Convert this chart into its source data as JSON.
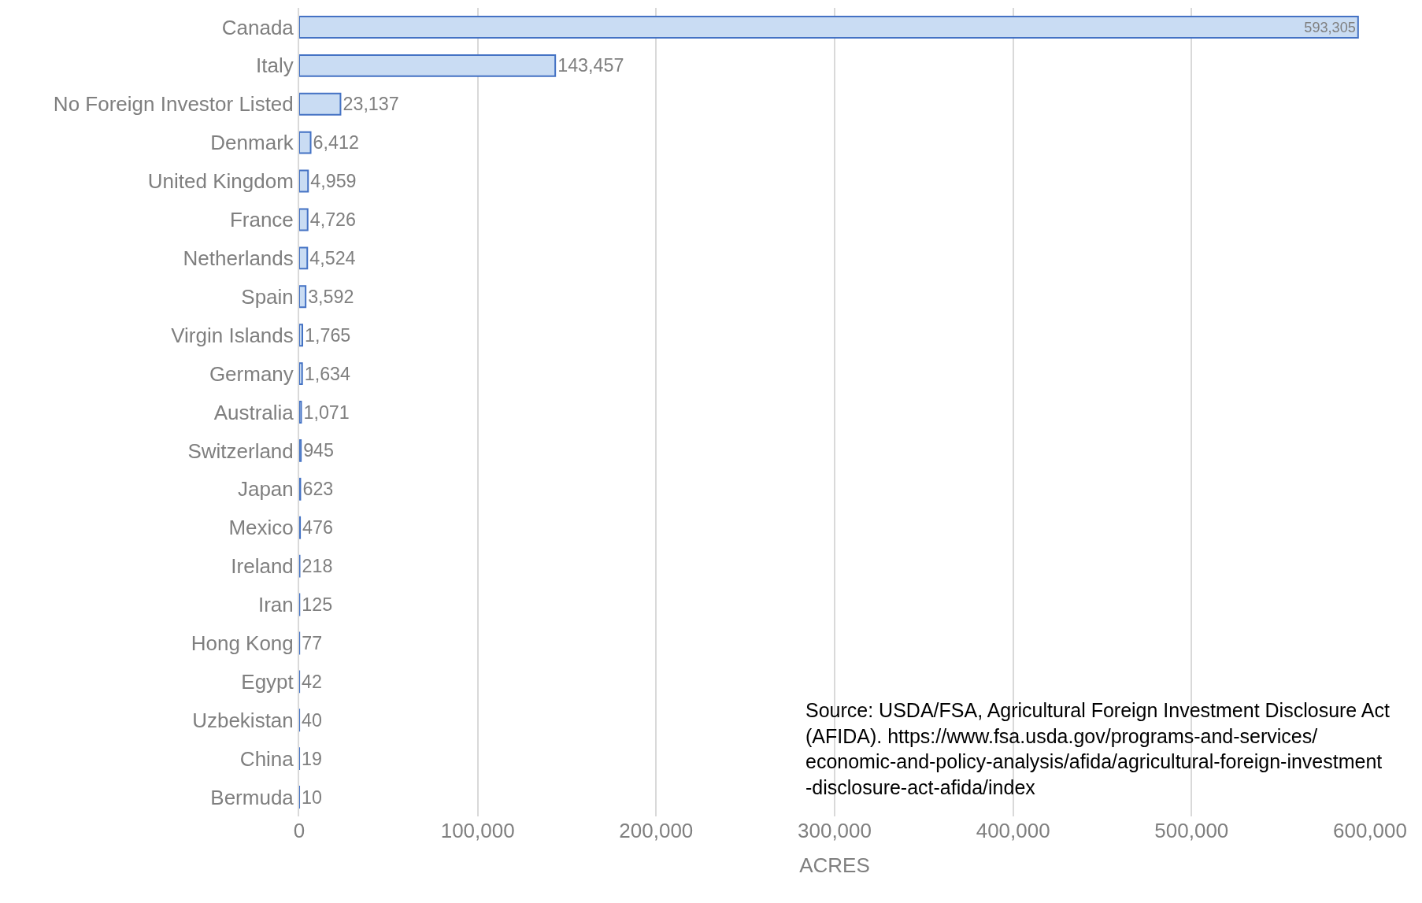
{
  "chart_data": {
    "type": "bar",
    "orientation": "horizontal",
    "xlabel": "ACRES",
    "categories": [
      "Canada",
      "Italy",
      "No Foreign Investor Listed",
      "Denmark",
      "United Kingdom",
      "France",
      "Netherlands",
      "Spain",
      "Virgin Islands",
      "Germany",
      "Australia",
      "Switzerland",
      "Japan",
      "Mexico",
      "Ireland",
      "Iran",
      "Hong Kong",
      "Egypt",
      "Uzbekistan",
      "China",
      "Bermuda"
    ],
    "values": [
      593305,
      143457,
      23137,
      6412,
      4959,
      4726,
      4524,
      3592,
      1765,
      1634,
      1071,
      945,
      623,
      476,
      218,
      125,
      77,
      42,
      40,
      19,
      10
    ],
    "color": "#c9dcf3",
    "xlim": [
      0,
      600000
    ],
    "xticks": [
      0,
      {
        "value": 100000,
        "label": "100,000"
      },
      {
        "value": 200000,
        "label": "200,000"
      },
      {
        "value": 300000,
        "label": "300,000"
      },
      {
        "value": 400000,
        "label": "400,000"
      },
      {
        "value": 500000,
        "label": "500,000"
      },
      {
        "value": 600000,
        "label": "600,000"
      }
    ],
    "grid": "x",
    "value_labels": [
      "593,305",
      "143,457",
      "23,137",
      "6,412",
      "4,959",
      "4,726",
      "4,524",
      "3,592",
      "1,765",
      "1,634",
      "1,071",
      "945",
      "623",
      "476",
      "218",
      "125",
      "77",
      "42",
      "40",
      "19",
      "10"
    ],
    "annotations": [
      "Source: USDA/FSA, Agricultural Foreign Investment Disclosure Act\n(AFIDA). https://www.fsa.usda.gov/programs-and-services/\neconomic-and-policy-analysis/afida/agricultural-foreign-investment\n-disclosure-act-afida/index"
    ]
  }
}
